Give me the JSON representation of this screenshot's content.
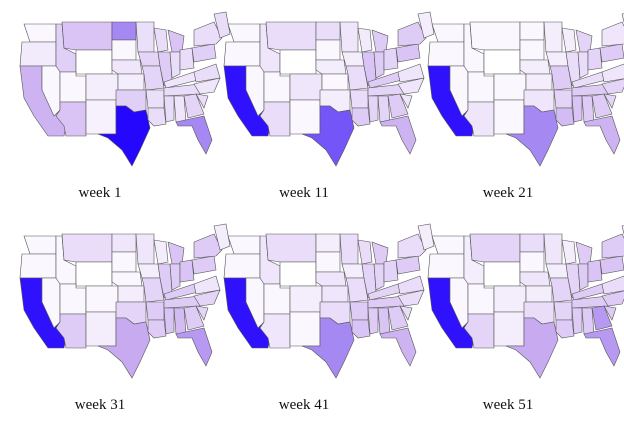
{
  "figure": {
    "panels": [
      {
        "label": "week 1",
        "intensity": {
          "CA": 0.45,
          "TX": 0.98,
          "FL": 0.6,
          "WA": 0.05,
          "OR": 0.12,
          "ID": 0.28,
          "MT": 0.35,
          "ND": 0.6,
          "MN": 0.18,
          "WI": 0.2,
          "MI": 0.35,
          "NY": 0.2,
          "NE": 0.15,
          "IA": 0.25,
          "IL": 0.3,
          "IN": 0.2,
          "OH": 0.2,
          "PA": 0.28,
          "KS": 0.1,
          "MO": 0.25,
          "KY": 0.15,
          "TN": 0.2,
          "OK": 0.28,
          "AR": 0.18,
          "LA": 0.2,
          "MS": 0.2,
          "AL": 0.15,
          "GA": 0.25,
          "SC": 0.2,
          "NC": 0.15,
          "VA": 0.2,
          "NM": 0.08,
          "AZ": 0.35,
          "UT": 0.05,
          "CO": 0.1,
          "NV": 0.05,
          "WY": 0.0,
          "SD": 0.05,
          "NE2": 0.2
        }
      },
      {
        "label": "week 11",
        "intensity": {
          "CA": 0.95,
          "TX": 0.75,
          "FL": 0.45,
          "WA": 0.05,
          "OR": 0.05,
          "ID": 0.15,
          "MT": 0.2,
          "ND": 0.2,
          "MN": 0.15,
          "WI": 0.12,
          "MI": 0.3,
          "NY": 0.3,
          "NE": 0.1,
          "IA": 0.1,
          "IL": 0.35,
          "IN": 0.3,
          "OH": 0.25,
          "PA": 0.35,
          "KS": 0.05,
          "MO": 0.2,
          "KY": 0.3,
          "TN": 0.25,
          "OK": 0.1,
          "AR": 0.2,
          "LA": 0.3,
          "MS": 0.25,
          "AL": 0.25,
          "GA": 0.3,
          "SC": 0.15,
          "NC": 0.15,
          "VA": 0.15,
          "NM": 0.05,
          "AZ": 0.2,
          "UT": 0.05,
          "CO": 0.15,
          "NV": 0.05,
          "WY": 0.0,
          "SD": 0.05,
          "NE2": 0.1
        }
      },
      {
        "label": "week 21",
        "intensity": {
          "CA": 0.95,
          "TX": 0.6,
          "FL": 0.45,
          "WA": 0.05,
          "OR": 0.05,
          "ID": 0.05,
          "MT": 0.05,
          "ND": 0.05,
          "MN": 0.1,
          "WI": 0.1,
          "MI": 0.25,
          "NY": 0.15,
          "NE": 0.1,
          "IA": 0.1,
          "IL": 0.2,
          "IN": 0.2,
          "OH": 0.25,
          "PA": 0.3,
          "KS": 0.1,
          "MO": 0.3,
          "KY": 0.2,
          "TN": 0.3,
          "OK": 0.15,
          "AR": 0.25,
          "LA": 0.4,
          "MS": 0.35,
          "AL": 0.3,
          "GA": 0.3,
          "SC": 0.25,
          "NC": 0.25,
          "VA": 0.15,
          "NM": 0.05,
          "AZ": 0.15,
          "UT": 0.05,
          "CO": 0.05,
          "NV": 0.05,
          "WY": 0.0,
          "SD": 0.05,
          "NE2": 0.1
        }
      },
      {
        "label": "week 31",
        "intensity": {
          "CA": 0.95,
          "TX": 0.5,
          "FL": 0.55,
          "WA": 0.05,
          "OR": 0.05,
          "ID": 0.05,
          "MT": 0.2,
          "ND": 0.15,
          "MN": 0.15,
          "WI": 0.1,
          "MI": 0.35,
          "NY": 0.3,
          "NE": 0.05,
          "IA": 0.1,
          "IL": 0.3,
          "IN": 0.3,
          "OH": 0.35,
          "PA": 0.3,
          "KS": 0.1,
          "MO": 0.25,
          "KY": 0.3,
          "TN": 0.3,
          "OK": 0.25,
          "AR": 0.3,
          "LA": 0.3,
          "MS": 0.35,
          "AL": 0.4,
          "GA": 0.3,
          "SC": 0.25,
          "NC": 0.25,
          "VA": 0.15,
          "NM": 0.1,
          "AZ": 0.3,
          "UT": 0.05,
          "CO": 0.05,
          "NV": 0.05,
          "WY": 0.0,
          "SD": 0.05,
          "NE2": 0.1
        }
      },
      {
        "label": "week 41",
        "intensity": {
          "CA": 0.95,
          "TX": 0.6,
          "FL": 0.45,
          "WA": 0.05,
          "OR": 0.05,
          "ID": 0.15,
          "MT": 0.2,
          "ND": 0.1,
          "MN": 0.2,
          "WI": 0.2,
          "MI": 0.3,
          "NY": 0.2,
          "NE": 0.15,
          "IA": 0.1,
          "IL": 0.25,
          "IN": 0.25,
          "OH": 0.25,
          "PA": 0.3,
          "KS": 0.15,
          "MO": 0.2,
          "KY": 0.25,
          "TN": 0.3,
          "OK": 0.2,
          "AR": 0.3,
          "LA": 0.35,
          "MS": 0.3,
          "AL": 0.35,
          "GA": 0.3,
          "SC": 0.2,
          "NC": 0.2,
          "VA": 0.2,
          "NM": 0.05,
          "AZ": 0.15,
          "UT": 0.05,
          "CO": 0.1,
          "NV": 0.05,
          "WY": 0.0,
          "SD": 0.05,
          "NE2": 0.1
        }
      },
      {
        "label": "week 51",
        "intensity": {
          "CA": 0.95,
          "TX": 0.5,
          "FL": 0.55,
          "WA": 0.05,
          "OR": 0.05,
          "ID": 0.1,
          "MT": 0.25,
          "ND": 0.2,
          "MN": 0.15,
          "WI": 0.1,
          "MI": 0.3,
          "NY": 0.3,
          "NE": 0.15,
          "IA": 0.1,
          "IL": 0.25,
          "IN": 0.3,
          "OH": 0.35,
          "PA": 0.35,
          "KS": 0.1,
          "MO": 0.25,
          "KY": 0.3,
          "TN": 0.3,
          "OK": 0.2,
          "AR": 0.25,
          "LA": 0.3,
          "MS": 0.3,
          "AL": 0.3,
          "GA": 0.55,
          "SC": 0.3,
          "NC": 0.3,
          "VA": 0.2,
          "NM": 0.1,
          "AZ": 0.25,
          "UT": 0.05,
          "CO": 0.1,
          "NV": 0.05,
          "WY": 0.0,
          "SD": 0.05,
          "NE2": 0.1
        }
      }
    ],
    "colors": {
      "low": "#ffffff",
      "high": "#1f00ff",
      "border": "#555555"
    }
  }
}
